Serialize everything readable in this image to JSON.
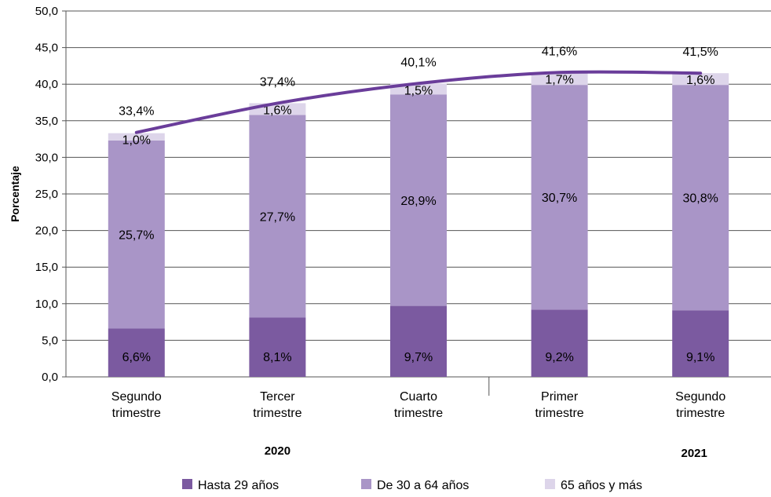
{
  "chart_data": {
    "type": "bar",
    "stacked": true,
    "ylabel": "Porcentaje",
    "ylim": [
      0,
      50
    ],
    "ytick_step": 5,
    "grid": true,
    "legend_position": "bottom",
    "categories": [
      "Segundo trimestre",
      "Tercer trimestre",
      "Cuarto trimestre",
      "Primer trimestre",
      "Segundo trimestre"
    ],
    "category_lines": [
      [
        "Segundo",
        "trimestre"
      ],
      [
        "Tercer",
        "trimestre"
      ],
      [
        "Cuarto",
        "trimestre"
      ],
      [
        "Primer",
        "trimestre"
      ],
      [
        "Segundo",
        "trimestre"
      ]
    ],
    "groups": [
      {
        "label": "2020",
        "categories": [
          0,
          1,
          2
        ]
      },
      {
        "label": "2021",
        "categories": [
          3,
          4
        ]
      }
    ],
    "series": [
      {
        "name": "Hasta 29 años",
        "color": "#7b5aa0",
        "values": [
          6.6,
          8.1,
          9.7,
          9.2,
          9.1
        ],
        "labels": [
          "6,6%",
          "8,1%",
          "9,7%",
          "9,2%",
          "9,1%"
        ]
      },
      {
        "name": "De 30 a 64 años",
        "color": "#a995c7",
        "values": [
          25.7,
          27.7,
          28.9,
          30.7,
          30.8
        ],
        "labels": [
          "25,7%",
          "27,7%",
          "28,9%",
          "30,7%",
          "30,8%"
        ]
      },
      {
        "name": "65 años y más",
        "color": "#ddd5ea",
        "values": [
          1.0,
          1.6,
          1.5,
          1.7,
          1.6
        ],
        "labels": [
          "1,0%",
          "1,6%",
          "1,5%",
          "1,7%",
          "1,6%"
        ]
      }
    ],
    "total_line": {
      "color": "#6a3d9a",
      "values": [
        33.4,
        37.4,
        40.1,
        41.6,
        41.5
      ],
      "labels": [
        "33,4%",
        "37,4%",
        "40,1%",
        "41,6%",
        "41,5%"
      ]
    }
  }
}
